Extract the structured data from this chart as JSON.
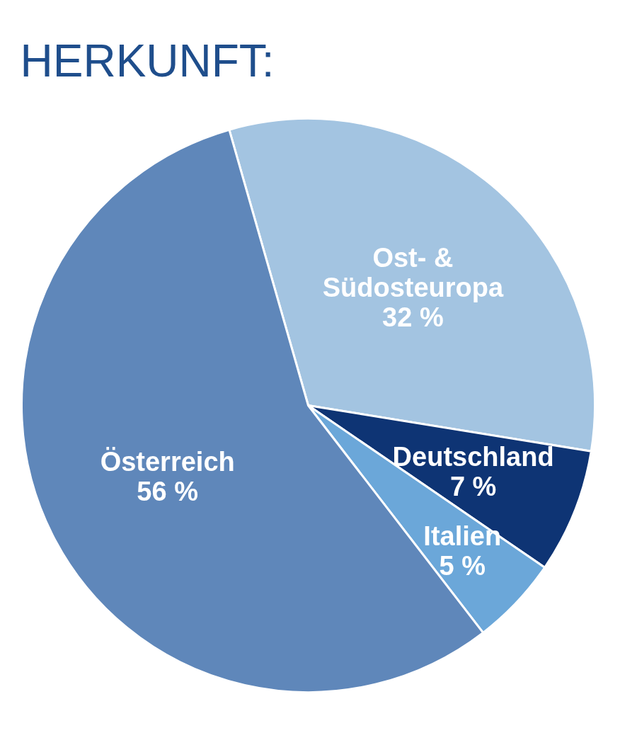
{
  "chart_data": {
    "type": "pie",
    "title": "HERKUNFT:",
    "categories": [
      "Ost- & Südosteuropa",
      "Deutschland",
      "Italien",
      "Österreich"
    ],
    "values": [
      32,
      7,
      5,
      56
    ],
    "value_labels": [
      "32 %",
      "7 %",
      "5 %",
      "56 %"
    ],
    "colors": [
      "#a3c4e1",
      "#0e3474",
      "#6ba7d9",
      "#5f87ba"
    ]
  }
}
